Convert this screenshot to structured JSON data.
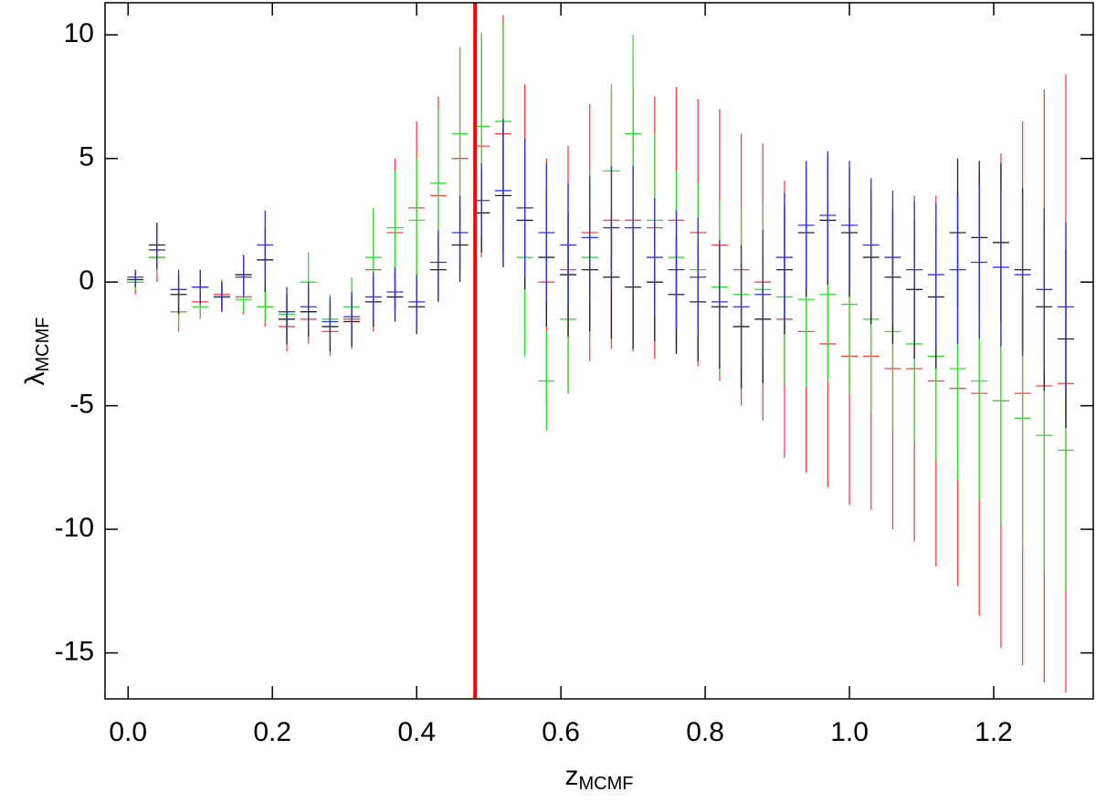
{
  "chart_data": {
    "type": "errorbar",
    "xlabel": {
      "main": "z",
      "sub": "MCMF"
    },
    "ylabel": {
      "main": "λ",
      "sub": "MCMF"
    },
    "xlim": [
      -0.032,
      1.338
    ],
    "ylim": [
      -16.86,
      11.3
    ],
    "xticks": [
      {
        "value": 0,
        "label": "0.0"
      },
      0.2,
      0.4,
      0.6,
      0.8,
      {
        "value": 1,
        "label": "1.0"
      },
      1.2
    ],
    "yticks": [
      -15,
      -10,
      -5,
      0,
      5,
      10
    ],
    "x": [
      0.01,
      0.04,
      0.07,
      0.1,
      0.13,
      0.16,
      0.19,
      0.22,
      0.25,
      0.28,
      0.31,
      0.34,
      0.37,
      0.4,
      0.43,
      0.46,
      0.49,
      0.52,
      0.55,
      0.58,
      0.61,
      0.64,
      0.67,
      0.7,
      0.73,
      0.76,
      0.79,
      0.82,
      0.85,
      0.88,
      0.91,
      0.94,
      0.97,
      1.0,
      1.03,
      1.06,
      1.09,
      1.12,
      1.15,
      1.18,
      1.21,
      1.24,
      1.27,
      1.3
    ],
    "series": [
      {
        "color": "#ff4040",
        "values": [
          0.0,
          1.0,
          -1.2,
          -0.8,
          -0.5,
          -0.6,
          -1.0,
          -1.8,
          -1.5,
          -2.0,
          -1.5,
          0.5,
          2.0,
          3.0,
          3.5,
          5.0,
          5.5,
          6.0,
          3.0,
          0.0,
          0.5,
          2.0,
          2.5,
          2.5,
          2.2,
          2.5,
          2.0,
          1.5,
          0.5,
          0.0,
          -1.5,
          -2.0,
          -2.5,
          -3.0,
          -3.0,
          -3.5,
          -3.5,
          -4.0,
          -4.3,
          -4.5,
          -4.8,
          -4.5,
          -4.2,
          -4.1
        ],
        "errors": [
          0.5,
          1.0,
          0.8,
          0.6,
          0.6,
          0.7,
          0.8,
          1.0,
          1.0,
          1.0,
          1.2,
          2.5,
          3.0,
          3.5,
          4.0,
          4.5,
          4.5,
          4.8,
          5.0,
          5.0,
          5.0,
          5.2,
          5.2,
          5.3,
          5.3,
          5.4,
          5.4,
          5.5,
          5.5,
          5.6,
          5.6,
          5.7,
          5.8,
          6.0,
          6.2,
          6.5,
          7.0,
          7.5,
          8.0,
          9.0,
          10.0,
          11.0,
          12.0,
          12.5
        ]
      },
      {
        "color": "#30e030",
        "values": [
          0.0,
          1.0,
          -1.2,
          -1.0,
          -0.6,
          -0.7,
          -1.0,
          -1.3,
          0.0,
          -1.5,
          -1.0,
          1.0,
          2.2,
          2.5,
          4.0,
          6.0,
          6.3,
          6.5,
          1.0,
          -4.0,
          -1.5,
          1.0,
          4.5,
          6.0,
          2.5,
          1.0,
          0.5,
          -0.2,
          -0.5,
          -0.3,
          -0.6,
          -0.7,
          -0.5,
          -0.9,
          -1.5,
          -2.0,
          -2.5,
          -3.0,
          -3.5,
          -4.0,
          -4.8,
          -5.5,
          -6.2,
          -6.8
        ],
        "errors": [
          0.3,
          0.6,
          0.6,
          0.5,
          0.5,
          0.5,
          0.6,
          0.8,
          1.2,
          1.0,
          1.2,
          2.0,
          2.3,
          2.5,
          3.0,
          3.5,
          3.8,
          4.0,
          4.0,
          2.0,
          3.0,
          3.5,
          3.5,
          4.0,
          3.5,
          3.5,
          3.5,
          3.5,
          3.5,
          3.5,
          3.5,
          3.5,
          3.5,
          3.6,
          3.8,
          4.0,
          4.0,
          4.2,
          4.5,
          4.8,
          5.0,
          5.2,
          5.5,
          5.7
        ]
      },
      {
        "color": "#202020",
        "values": [
          0.1,
          1.5,
          -0.5,
          -0.2,
          -0.6,
          0.3,
          0.9,
          -1.5,
          -1.2,
          -1.8,
          -1.6,
          -0.8,
          -0.6,
          -1.0,
          0.5,
          1.5,
          2.8,
          3.5,
          2.5,
          1.0,
          0.3,
          0.5,
          0.2,
          -0.2,
          0.0,
          -0.5,
          -0.8,
          -1.0,
          -1.8,
          -1.5,
          0.5,
          2.0,
          2.5,
          2.0,
          1.0,
          0.2,
          -0.3,
          -0.6,
          2.0,
          1.8,
          1.6,
          0.5,
          -1.0,
          -2.3
        ],
        "errors": [
          0.3,
          0.9,
          0.8,
          0.7,
          0.6,
          0.8,
          1.3,
          1.0,
          1.0,
          1.0,
          1.0,
          1.0,
          1.0,
          1.1,
          1.3,
          1.5,
          1.6,
          2.9,
          2.8,
          2.8,
          2.5,
          2.5,
          2.5,
          2.5,
          2.4,
          2.4,
          2.4,
          2.5,
          2.5,
          2.6,
          2.6,
          2.6,
          2.6,
          2.6,
          2.7,
          2.7,
          2.8,
          2.9,
          3.0,
          3.1,
          3.2,
          3.3,
          3.4,
          3.6
        ]
      },
      {
        "color": "#3030e0",
        "values": [
          0.2,
          1.3,
          -0.3,
          -0.2,
          -0.6,
          0.2,
          1.5,
          -1.2,
          -1.0,
          -1.6,
          -1.4,
          -0.6,
          -0.4,
          -0.8,
          0.8,
          2.0,
          3.3,
          3.7,
          3.0,
          2.0,
          1.5,
          1.8,
          2.2,
          2.2,
          1.0,
          0.5,
          0.2,
          -0.8,
          -1.0,
          -0.5,
          1.0,
          2.3,
          2.7,
          2.3,
          1.5,
          1.0,
          0.5,
          0.3,
          0.5,
          0.8,
          0.6,
          0.3,
          -0.3,
          -1.0
        ],
        "errors": [
          0.3,
          0.8,
          0.8,
          0.7,
          0.6,
          0.8,
          1.4,
          1.0,
          1.0,
          1.0,
          1.0,
          1.0,
          1.0,
          1.1,
          1.3,
          1.5,
          1.5,
          2.9,
          2.8,
          2.8,
          2.5,
          2.5,
          2.5,
          2.5,
          2.4,
          2.4,
          2.4,
          2.5,
          2.5,
          2.6,
          2.6,
          2.6,
          2.6,
          2.6,
          2.7,
          2.7,
          2.8,
          2.9,
          3.0,
          3.1,
          3.2,
          3.3,
          3.3,
          3.4
        ]
      }
    ],
    "vline": {
      "x": 0.481,
      "color": "#ff0000"
    }
  }
}
